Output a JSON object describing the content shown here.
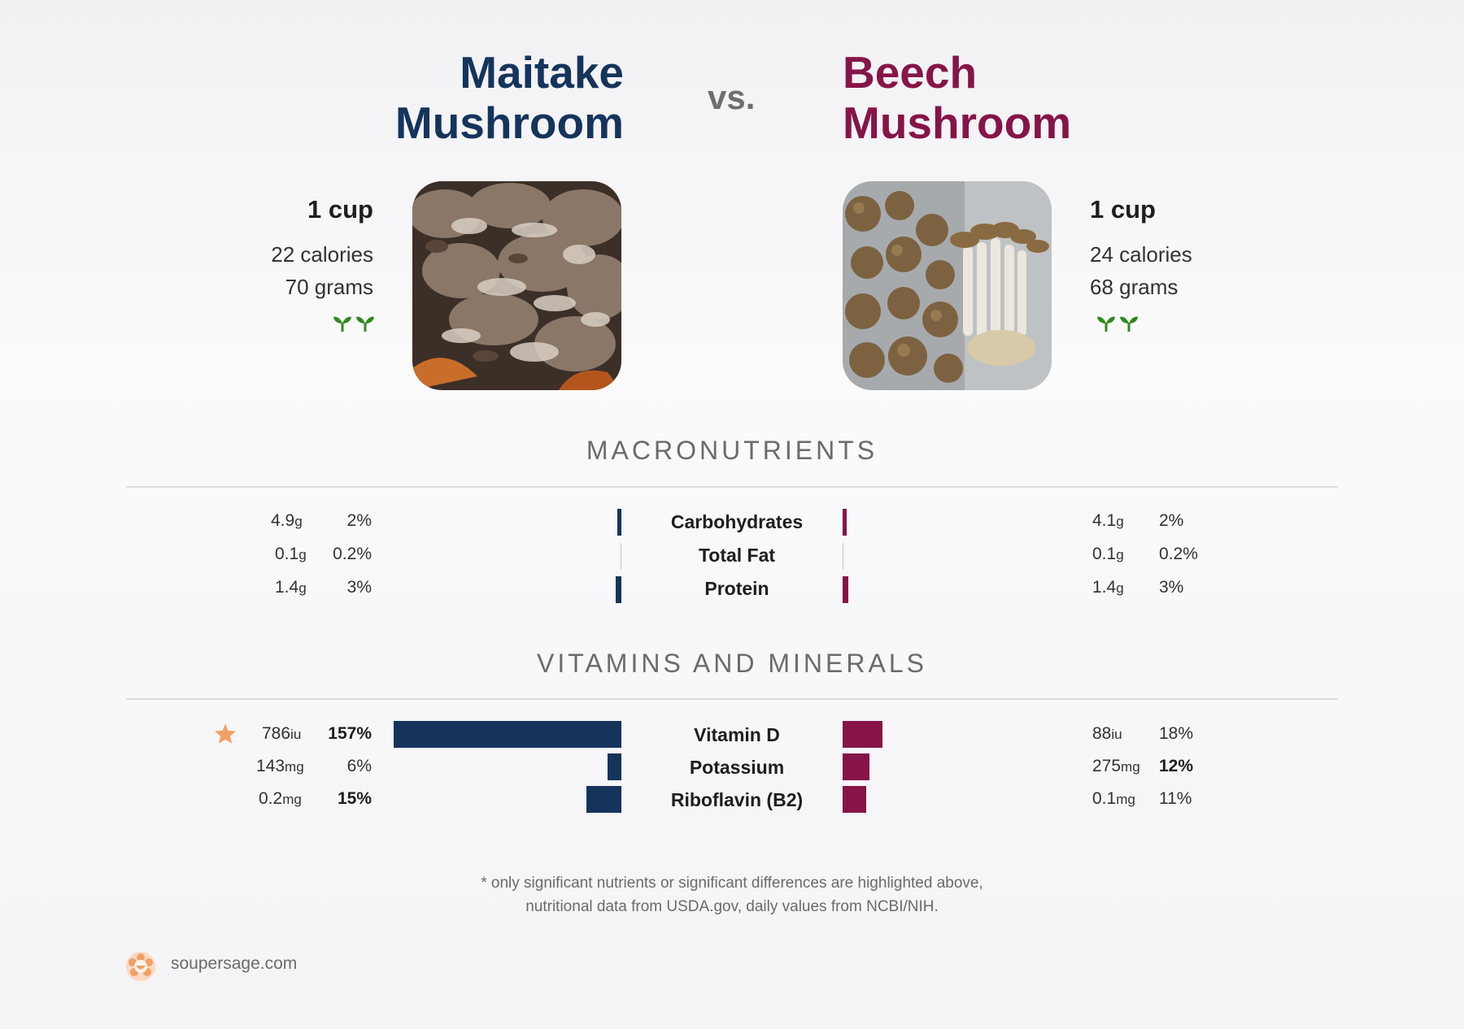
{
  "left_food": {
    "name_line1": "Maitake",
    "name_line2": "Mushroom",
    "serving": "1 cup",
    "calories": "22 calories",
    "grams": "70 grams",
    "color": "#15345c"
  },
  "vs": "vs.",
  "right_food": {
    "name_line1": "Beech",
    "name_line2": "Mushroom",
    "serving": "1 cup",
    "calories": "24 calories",
    "grams": "68 grams",
    "color": "#861449"
  },
  "macros": {
    "title": "MACRONUTRIENTS",
    "rows": [
      {
        "label": "Carbohydrates",
        "left_amount": "4.9",
        "left_unit": "g",
        "left_pct": "2%",
        "right_amount": "4.1",
        "right_unit": "g",
        "right_pct": "2%",
        "left_bar_pct": 2,
        "right_bar_pct": 2
      },
      {
        "label": "Total Fat",
        "left_amount": "0.1",
        "left_unit": "g",
        "left_pct": "0.2%",
        "right_amount": "0.1",
        "right_unit": "g",
        "right_pct": "0.2%",
        "left_bar_pct": 0.2,
        "right_bar_pct": 0.2
      },
      {
        "label": "Protein",
        "left_amount": "1.4",
        "left_unit": "g",
        "left_pct": "3%",
        "right_amount": "1.4",
        "right_unit": "g",
        "right_pct": "3%",
        "left_bar_pct": 3,
        "right_bar_pct": 3
      }
    ]
  },
  "vitamins": {
    "title": "VITAMINS AND MINERALS",
    "rows": [
      {
        "label": "Vitamin D",
        "left_amount": "786",
        "left_unit": "iu",
        "left_pct": "157%",
        "right_amount": "88",
        "right_unit": "iu",
        "right_pct": "18%",
        "left_bar_pct": 157,
        "right_bar_pct": 18,
        "left_bold": true,
        "right_bold": false,
        "left_star": true
      },
      {
        "label": "Potassium",
        "left_amount": "143",
        "left_unit": "mg",
        "left_pct": "6%",
        "right_amount": "275",
        "right_unit": "mg",
        "right_pct": "12%",
        "left_bar_pct": 6,
        "right_bar_pct": 12,
        "left_bold": false,
        "right_bold": true,
        "left_star": false
      },
      {
        "label": "Riboflavin (B2)",
        "left_amount": "0.2",
        "left_unit": "mg",
        "left_pct": "15%",
        "right_amount": "0.1",
        "right_unit": "mg",
        "right_pct": "11%",
        "left_bar_pct": 15,
        "right_bar_pct": 11,
        "left_bold": true,
        "right_bold": false,
        "left_star": false
      }
    ]
  },
  "footnote_line1": "* only significant nutrients or significant differences are highlighted above,",
  "footnote_line2": "nutritional data from USDA.gov, daily values from NCBI/NIH.",
  "brand": "soupersage.com",
  "icons": {
    "vegan": "sprout-icon",
    "highlight": "star-icon",
    "logo": "soupersage-logo-icon"
  }
}
